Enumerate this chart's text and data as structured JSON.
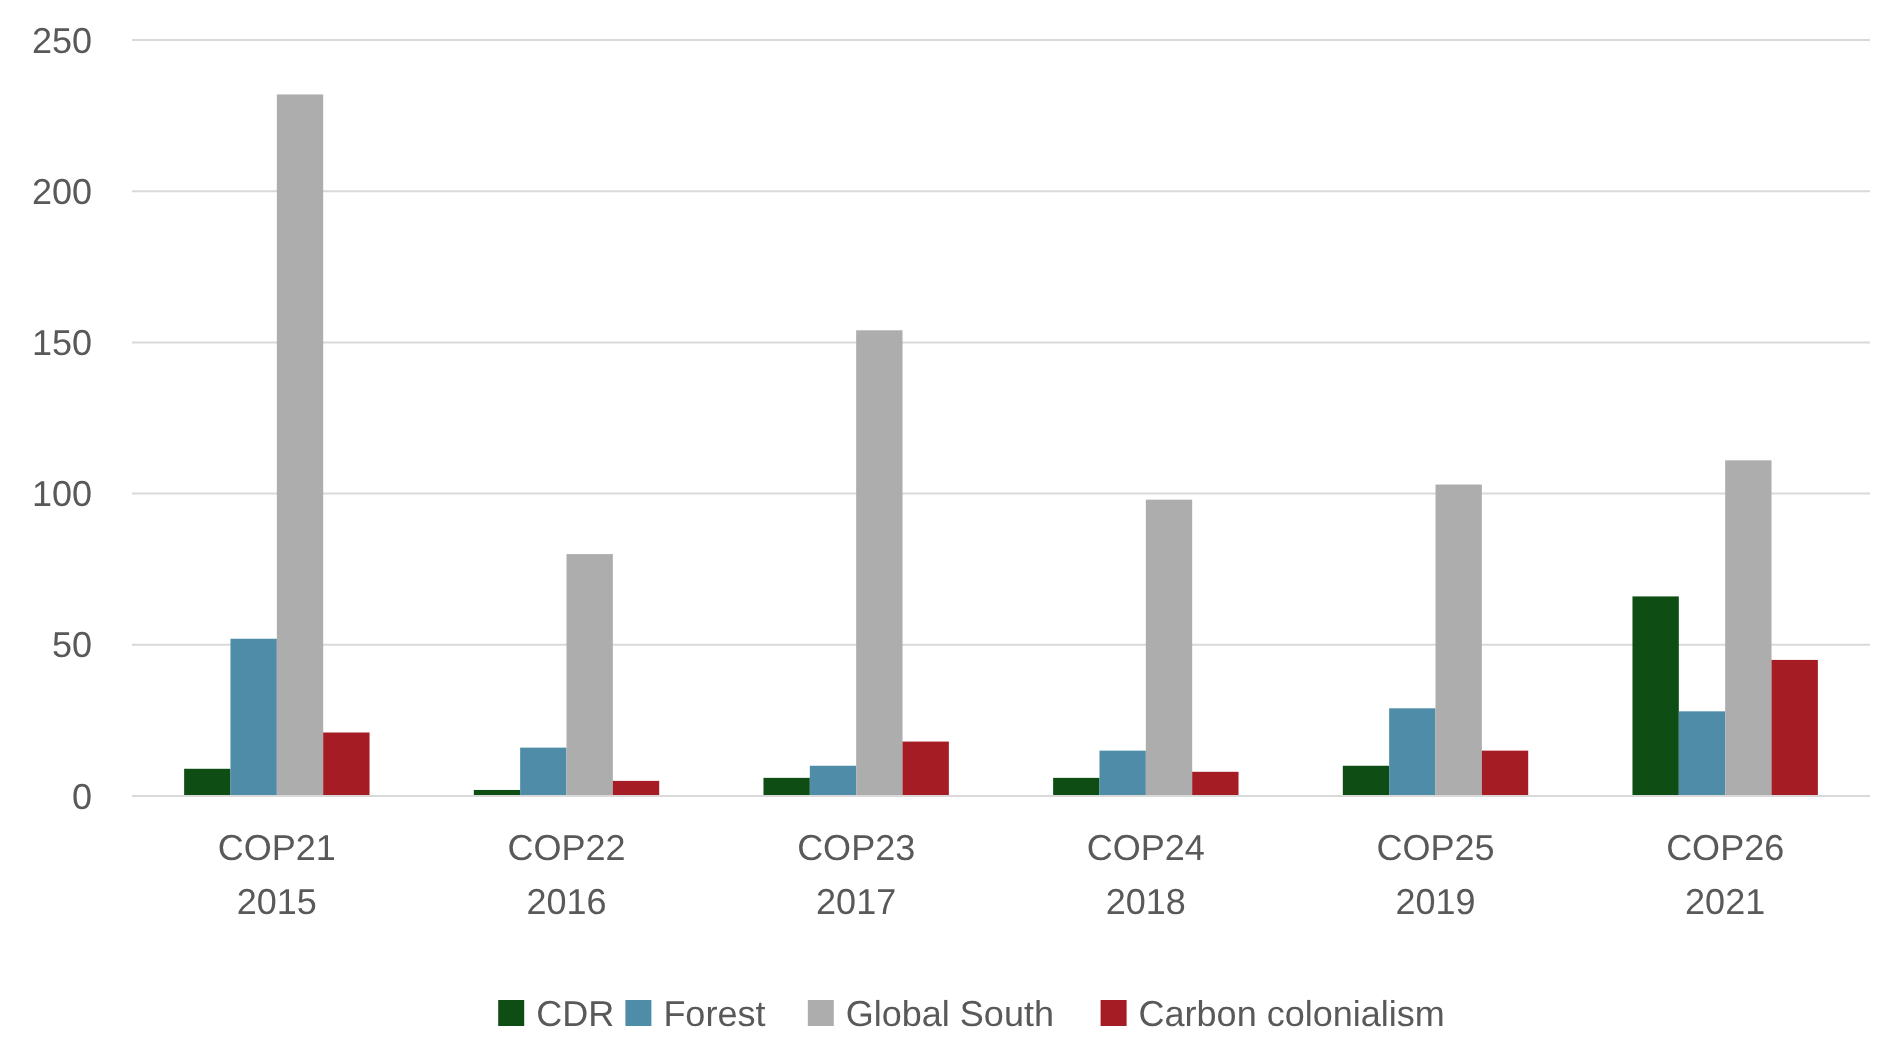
{
  "chart_data": {
    "type": "bar",
    "categories": [
      "COP21\n2015",
      "COP22\n2016",
      "COP23\n2017",
      "COP24\n2018",
      "COP25\n2019",
      "COP26\n2021"
    ],
    "series": [
      {
        "name": "CDR",
        "color": "#0e4d14",
        "values": [
          9,
          2,
          6,
          6,
          10,
          66
        ]
      },
      {
        "name": "Forest",
        "color": "#4e8ca8",
        "values": [
          52,
          16,
          10,
          15,
          29,
          28
        ]
      },
      {
        "name": "Global South",
        "color": "#adadad",
        "values": [
          232,
          80,
          154,
          98,
          103,
          111
        ]
      },
      {
        "name": "Carbon colonialism",
        "color": "#a51c24",
        "values": [
          21,
          5,
          18,
          8,
          15,
          45
        ]
      }
    ],
    "ylim": [
      0,
      250
    ],
    "yticks": [
      0,
      50,
      100,
      150,
      200,
      250
    ],
    "grid": "y",
    "legend": "bottom"
  }
}
